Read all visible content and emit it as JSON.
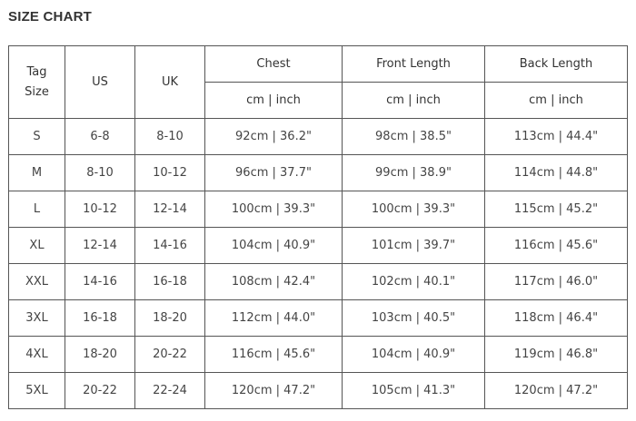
{
  "title": "SIZE CHART",
  "headers": {
    "tag_size": "Tag Size",
    "us": "US",
    "uk": "UK",
    "chest": "Chest",
    "front_length": "Front Length",
    "back_length": "Back Length",
    "unit": "cm | inch"
  },
  "rows": [
    {
      "tag": "S",
      "us": "6-8",
      "uk": "8-10",
      "chest": "92cm | 36.2\"",
      "front": "98cm | 38.5\"",
      "back": "113cm | 44.4\""
    },
    {
      "tag": "M",
      "us": "8-10",
      "uk": "10-12",
      "chest": "96cm | 37.7\"",
      "front": "99cm | 38.9\"",
      "back": "114cm | 44.8\""
    },
    {
      "tag": "L",
      "us": "10-12",
      "uk": "12-14",
      "chest": "100cm | 39.3\"",
      "front": "100cm | 39.3\"",
      "back": "115cm | 45.2\""
    },
    {
      "tag": "XL",
      "us": "12-14",
      "uk": "14-16",
      "chest": "104cm | 40.9\"",
      "front": "101cm | 39.7\"",
      "back": "116cm | 45.6\""
    },
    {
      "tag": "XXL",
      "us": "14-16",
      "uk": "16-18",
      "chest": "108cm | 42.4\"",
      "front": "102cm | 40.1\"",
      "back": "117cm | 46.0\""
    },
    {
      "tag": "3XL",
      "us": "16-18",
      "uk": "18-20",
      "chest": "112cm | 44.0\"",
      "front": "103cm | 40.5\"",
      "back": "118cm | 46.4\""
    },
    {
      "tag": "4XL",
      "us": "18-20",
      "uk": "20-22",
      "chest": "116cm | 45.6\"",
      "front": "104cm | 40.9\"",
      "back": "119cm | 46.8\""
    },
    {
      "tag": "5XL",
      "us": "20-22",
      "uk": "22-24",
      "chest": "120cm | 47.2\"",
      "front": "105cm | 41.3\"",
      "back": "120cm | 47.2\""
    }
  ]
}
